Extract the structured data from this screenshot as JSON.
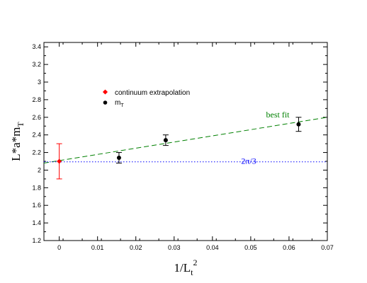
{
  "chart_data": {
    "type": "scatter",
    "xlabel": {
      "base": "1/L",
      "sub": "t",
      "sup": "2"
    },
    "ylabel": {
      "base": "L*a*m",
      "sub": "T"
    },
    "xlim": [
      -0.004,
      0.07
    ],
    "ylim": [
      1.2,
      3.45
    ],
    "x_ticks": [
      0,
      0.01,
      0.02,
      0.03,
      0.04,
      0.05,
      0.06,
      0.07
    ],
    "x_tick_labels": [
      "0",
      "0.01",
      "0.02",
      "0.03",
      "0.04",
      "0.05",
      "0.06",
      "0.07"
    ],
    "y_ticks": [
      1.2,
      1.4,
      1.6,
      1.8,
      2,
      2.2,
      2.4,
      2.6,
      2.8,
      3,
      3.2,
      3.4
    ],
    "y_tick_labels": [
      "1.2",
      "1.4",
      "1.6",
      "1.8",
      "2",
      "2.2",
      "2.4",
      "2.6",
      "2.8",
      "3",
      "3.2",
      "3.4"
    ],
    "grid": false,
    "legend": {
      "placement": "upper-left",
      "entries": [
        {
          "label": "continuum extrapolation",
          "marker": "diamond",
          "color": "#ff0000"
        },
        {
          "label_base": "m",
          "label_sub": "T",
          "marker": "circle",
          "color": "#000000"
        }
      ]
    },
    "series": [
      {
        "marker": "diamond",
        "color": "#ff0000",
        "error_color": "#ff0000",
        "points": [
          {
            "x": 0,
            "y": 2.1,
            "err": 0.2
          }
        ]
      },
      {
        "marker": "circle",
        "color": "#000000",
        "error_color": "#000000",
        "points": [
          {
            "x": 0.0156,
            "y": 2.14,
            "err": 0.06
          },
          {
            "x": 0.0278,
            "y": 2.34,
            "err": 0.06
          },
          {
            "x": 0.0625,
            "y": 2.52,
            "err": 0.08
          }
        ]
      }
    ],
    "lines": [
      {
        "label": "best fit",
        "color": "#008000",
        "dash": "dashed",
        "x": [
          -0.004,
          0.07
        ],
        "y": [
          2.08,
          2.6
        ],
        "label_at": {
          "x": 0.054,
          "y": 2.6
        }
      },
      {
        "label": "2π/3",
        "color": "#0000ff",
        "dash": "dotted",
        "x": [
          -0.004,
          0.07
        ],
        "y": [
          2.094,
          2.094
        ],
        "label_at": {
          "x": 0.0475,
          "y": 2.07
        }
      }
    ]
  }
}
